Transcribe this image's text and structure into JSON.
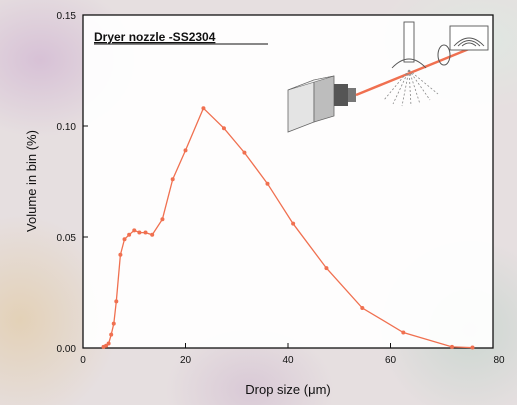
{
  "chart_data": {
    "type": "line",
    "title": "Dryer nozzle -SS2304",
    "xlabel": "Drop size (μm)",
    "ylabel": "Volume in bin (%)",
    "xlim": [
      0,
      80
    ],
    "ylim": [
      0,
      0.15
    ],
    "x_ticks": [
      "0",
      "20",
      "40",
      "60",
      "80"
    ],
    "y_ticks": [
      "0.00",
      "0.05",
      "0.10",
      "0.15"
    ],
    "grid": false,
    "series": [
      {
        "color": "#f07050",
        "x": [
          4,
          4.5,
          5,
          5.5,
          6,
          6.5,
          7.3,
          8.1,
          9,
          10,
          11,
          12.2,
          13.5,
          15.5,
          17.5,
          20,
          23.5,
          27.5,
          31.5,
          36,
          41,
          47.5,
          54.5,
          62.5,
          72,
          76
        ],
        "y": [
          0.0005,
          0.001,
          0.002,
          0.006,
          0.011,
          0.021,
          0.042,
          0.049,
          0.051,
          0.053,
          0.052,
          0.052,
          0.051,
          0.058,
          0.076,
          0.089,
          0.108,
          0.099,
          0.088,
          0.074,
          0.056,
          0.036,
          0.018,
          0.007,
          0.0005,
          0.0002
        ]
      }
    ]
  }
}
